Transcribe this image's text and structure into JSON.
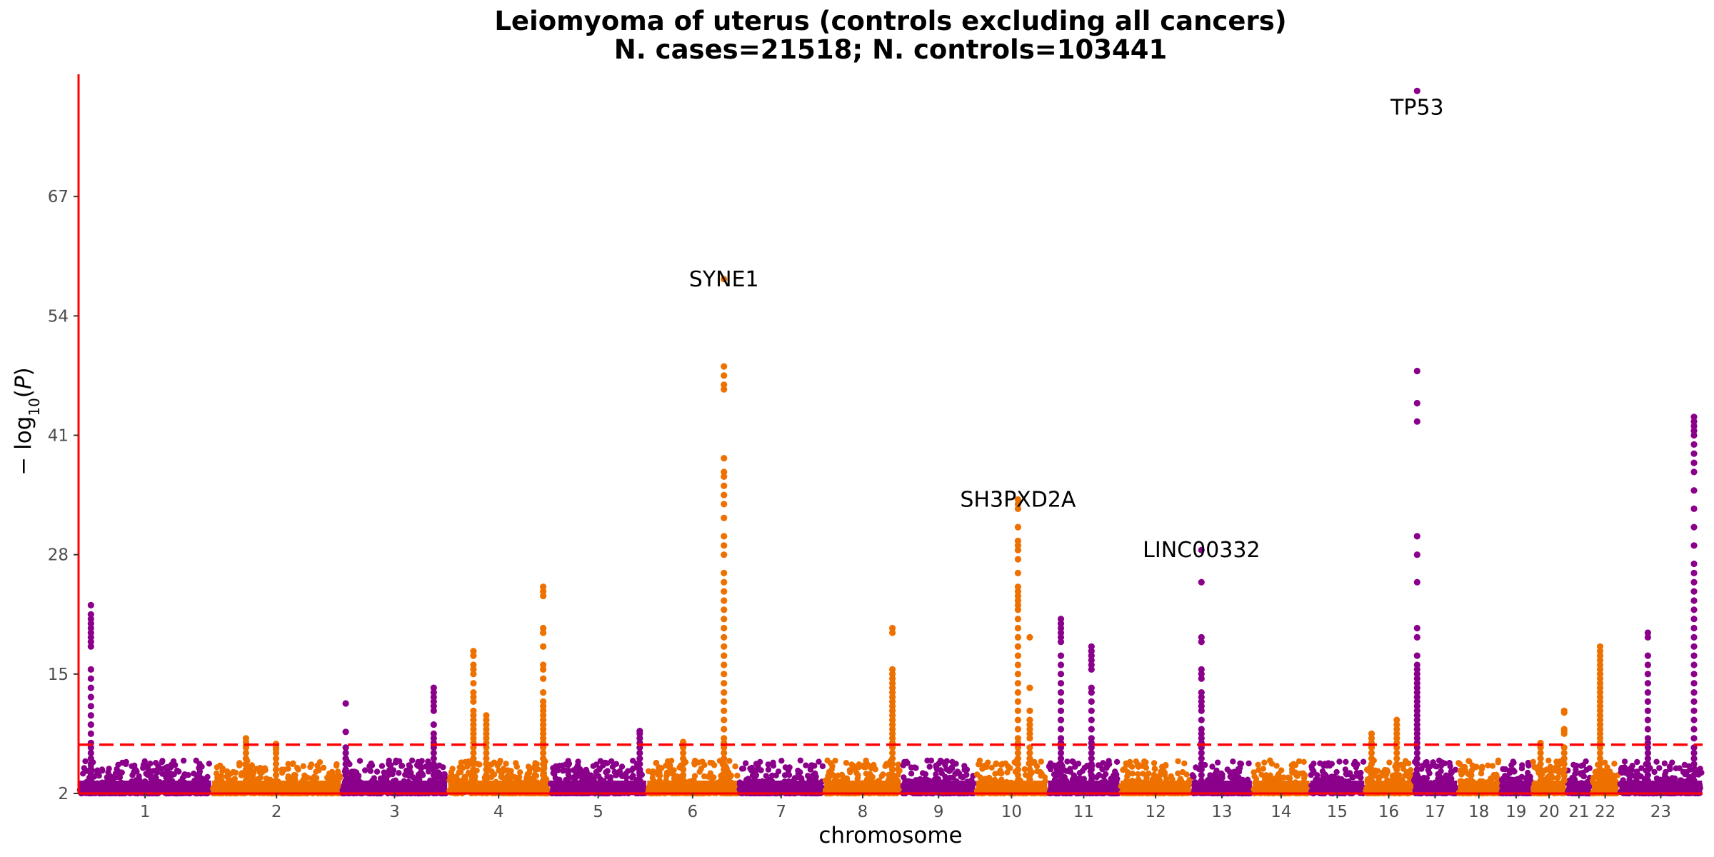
{
  "chart_data": {
    "type": "scatter",
    "subtype": "manhattan",
    "title": "Leiomyoma of uterus (controls excluding all cancers)",
    "subtitle": "N. cases=21518; N. controls=103441",
    "xlabel": "chromosome",
    "ylabel": "−log10(P)",
    "ylim": [
      2,
      80
    ],
    "y_ticks": [
      2,
      15,
      28,
      41,
      54,
      67
    ],
    "significance_line": 7.3,
    "colors": {
      "odd_chromosome": "#8b008b",
      "even_chromosome": "#ee7100",
      "axis_and_threshold": "#ff0000"
    },
    "chromosomes": [
      {
        "label": "1",
        "start": 0,
        "end": 248
      },
      {
        "label": "2",
        "start": 248,
        "end": 490
      },
      {
        "label": "3",
        "start": 490,
        "end": 688
      },
      {
        "label": "4",
        "start": 688,
        "end": 878
      },
      {
        "label": "5",
        "start": 878,
        "end": 1059
      },
      {
        "label": "6",
        "start": 1059,
        "end": 1230
      },
      {
        "label": "7",
        "start": 1230,
        "end": 1389
      },
      {
        "label": "8",
        "start": 1389,
        "end": 1534
      },
      {
        "label": "9",
        "start": 1534,
        "end": 1672
      },
      {
        "label": "10",
        "start": 1672,
        "end": 1806
      },
      {
        "label": "11",
        "start": 1806,
        "end": 1941
      },
      {
        "label": "12",
        "start": 1941,
        "end": 2074
      },
      {
        "label": "13",
        "start": 2074,
        "end": 2188
      },
      {
        "label": "14",
        "start": 2188,
        "end": 2295
      },
      {
        "label": "15",
        "start": 2295,
        "end": 2397
      },
      {
        "label": "16",
        "start": 2397,
        "end": 2487
      },
      {
        "label": "17",
        "start": 2487,
        "end": 2570
      },
      {
        "label": "18",
        "start": 2570,
        "end": 2650
      },
      {
        "label": "19",
        "start": 2650,
        "end": 2709
      },
      {
        "label": "20",
        "start": 2709,
        "end": 2773
      },
      {
        "label": "21",
        "start": 2773,
        "end": 2820
      },
      {
        "label": "22",
        "start": 2820,
        "end": 2871
      },
      {
        "label": "23",
        "start": 2871,
        "end": 3027
      }
    ],
    "peaks": [
      {
        "chrom": "1",
        "pos": 23,
        "values": [
          22.5,
          21.5,
          21.0,
          20.5,
          20.0,
          19.5,
          19.0,
          18.5,
          18.0,
          15.5,
          14.5,
          13.5,
          12.5,
          11.5,
          10.5,
          9.5,
          8.5,
          7.5
        ]
      },
      {
        "chrom": "2",
        "pos": 64,
        "values": [
          8.0,
          7.6,
          7.2
        ]
      },
      {
        "chrom": "2",
        "pos": 120,
        "values": [
          7.4,
          6.8
        ]
      },
      {
        "chrom": "3",
        "pos": 8,
        "values": [
          11.8,
          8.7
        ]
      },
      {
        "chrom": "3",
        "pos": 172,
        "values": [
          13.5,
          13.0,
          12.5,
          12.0,
          11.5,
          11.0,
          9.5,
          8.5,
          8.0,
          7.5
        ]
      },
      {
        "chrom": "4",
        "pos": 48,
        "values": [
          17.5,
          17.0,
          16.0,
          15.5,
          15.0,
          14.0,
          13.0,
          12.5,
          12.0,
          11.0,
          10.5,
          10.0,
          9.5,
          9.0,
          8.5,
          8.0,
          7.5
        ]
      },
      {
        "chrom": "4",
        "pos": 72,
        "values": [
          10.5,
          10.0,
          9.5,
          9.0,
          8.5,
          8.0,
          7.5
        ]
      },
      {
        "chrom": "4",
        "pos": 178,
        "values": [
          24.5,
          24.0,
          23.5,
          20.0,
          19.5,
          18.0,
          16.0,
          15.5,
          14.5,
          13.0,
          12.0,
          11.5,
          11.0,
          10.5,
          10.0,
          9.5,
          9.0,
          8.5,
          8.0,
          7.5
        ]
      },
      {
        "chrom": "5",
        "pos": 168,
        "values": [
          8.8,
          8.5,
          8.0,
          7.5
        ]
      },
      {
        "chrom": "6",
        "pos": 68,
        "values": [
          7.6,
          7.2
        ]
      },
      {
        "chrom": "6",
        "pos": 144,
        "values": [
          58.0,
          48.5,
          47.5,
          46.5,
          46.0,
          38.5,
          37.0,
          36.5,
          35.5,
          34.5,
          33.5,
          32.0,
          30.0,
          29.0,
          28.0,
          26.0,
          25.0,
          24.0,
          23.0,
          22.0,
          21.0,
          20.0,
          19.0,
          18.0,
          17.0,
          16.0,
          15.0,
          14.0,
          13.0,
          12.0,
          11.0,
          10.0,
          9.0,
          8.0,
          7.5
        ]
      },
      {
        "chrom": "8",
        "pos": 128,
        "values": [
          20.0,
          19.5,
          15.5,
          15.0,
          14.5,
          14.0,
          13.5,
          13.0,
          12.5,
          12.0,
          11.5,
          11.0,
          10.5,
          10.0,
          9.5,
          9.0,
          8.5,
          8.0,
          7.5
        ]
      },
      {
        "chrom": "10",
        "pos": 79,
        "values": [
          34.0,
          33.5,
          33.0,
          31.0,
          29.5,
          29.0,
          28.5,
          27.5,
          26.0,
          24.5,
          24.0,
          23.5,
          23.0,
          22.5,
          22.0,
          21.0,
          20.0,
          19.0,
          18.0,
          17.0,
          16.0,
          15.0,
          14.0,
          13.0,
          12.0,
          11.0,
          10.0,
          9.0,
          8.0,
          7.5
        ]
      },
      {
        "chrom": "10",
        "pos": 101,
        "values": [
          19.0,
          13.5,
          11.0,
          10.0,
          9.5,
          9.0,
          8.5,
          8.0
        ]
      },
      {
        "chrom": "11",
        "pos": 25,
        "values": [
          21.0,
          20.5,
          20.0,
          19.5,
          19.0,
          18.5,
          17.0,
          16.0,
          15.0,
          14.0,
          13.0,
          12.0,
          11.0,
          10.0,
          9.0,
          8.0,
          7.5
        ]
      },
      {
        "chrom": "11",
        "pos": 82,
        "values": [
          18.0,
          17.5,
          17.0,
          16.5,
          16.0,
          15.5,
          13.5,
          13.0,
          12.0,
          11.0,
          10.0,
          9.0,
          8.0,
          7.5
        ]
      },
      {
        "chrom": "13",
        "pos": 19,
        "values": [
          28.5,
          25.0,
          19.0,
          18.5,
          15.5,
          15.0,
          14.5,
          13.0,
          12.5,
          12.0,
          11.5,
          11.0,
          10.0,
          9.0,
          8.5,
          8.0,
          7.5
        ]
      },
      {
        "chrom": "16",
        "pos": 13,
        "values": [
          8.5,
          8.0,
          7.5
        ]
      },
      {
        "chrom": "16",
        "pos": 60,
        "values": [
          10.0,
          9.5,
          9.0,
          8.5,
          8.0,
          7.5
        ]
      },
      {
        "chrom": "17",
        "pos": 8,
        "values": [
          78.5,
          48.0,
          44.5,
          42.5,
          30.0,
          28.0,
          25.0,
          20.0,
          19.0,
          17.0,
          16.0,
          15.5,
          15.0,
          14.5,
          14.0,
          13.5,
          13.0,
          12.5,
          12.0,
          11.5,
          11.0,
          10.5,
          10.0,
          9.5,
          9.0,
          8.5,
          8.0,
          7.5
        ]
      },
      {
        "chrom": "20",
        "pos": 16,
        "values": [
          7.5,
          7.2
        ]
      },
      {
        "chrom": "20",
        "pos": 60,
        "values": [
          11.0,
          10.8,
          9.0,
          8.8,
          8.5
        ]
      },
      {
        "chrom": "22",
        "pos": 16,
        "values": [
          18.0,
          17.5,
          17.0,
          16.5,
          16.0,
          15.5,
          15.0,
          14.5,
          14.0,
          13.5,
          13.0,
          12.5,
          12.0,
          11.5,
          11.0,
          10.5,
          10.0,
          9.5,
          9.0,
          8.5,
          8.0,
          7.5
        ]
      },
      {
        "chrom": "23",
        "pos": 54,
        "values": [
          19.5,
          19.0,
          17.0,
          16.0,
          15.0,
          14.0,
          13.0,
          12.0,
          11.0,
          10.0,
          9.0,
          8.0,
          7.5
        ]
      },
      {
        "chrom": "23",
        "pos": 140,
        "values": [
          43.0,
          42.5,
          42.0,
          41.5,
          41.0,
          40.0,
          39.0,
          38.0,
          37.0,
          35.0,
          33.0,
          31.0,
          29.0,
          27.0,
          26.0,
          25.0,
          24.0,
          23.0,
          22.0,
          21.0,
          20.0,
          19.0,
          18.0,
          17.0,
          16.0,
          15.0,
          14.0,
          13.0,
          12.0,
          11.0,
          10.0,
          9.0,
          8.0
        ]
      }
    ],
    "annotations": [
      {
        "label": "SYNE1",
        "chrom": "6",
        "pos": 144,
        "y": 58.0
      },
      {
        "label": "SH3PXD2A",
        "chrom": "10",
        "pos": 79,
        "y": 34.0
      },
      {
        "label": "LINC00332",
        "chrom": "13",
        "pos": 19,
        "y": 28.5
      },
      {
        "label": "TP53",
        "chrom": "17",
        "pos": 8,
        "y": 78.5
      }
    ]
  }
}
